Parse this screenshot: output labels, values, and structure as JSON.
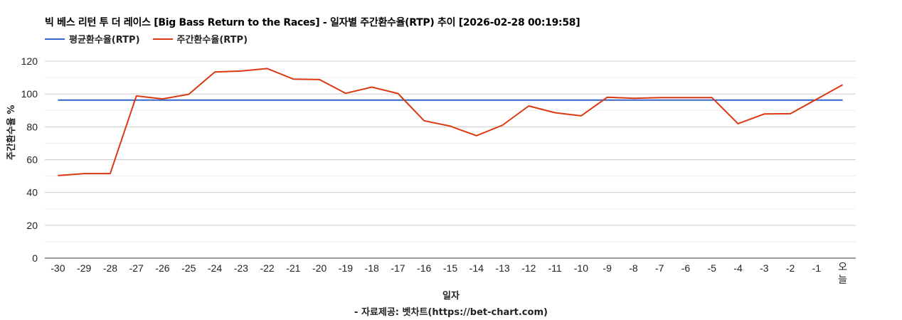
{
  "chart_title": "빅 베스 리턴 투 더 레이스 [Big Bass Return to the Races] - 일자별 주간환수율(RTP) 추이 [2026-02-28 00:19:58]",
  "legend": [
    {
      "label": "평균환수율(RTP)",
      "color": "#3366CC"
    },
    {
      "label": "주간환수율(RTP)",
      "color": "#DC3912"
    }
  ],
  "axis": {
    "ylabel": "주간환수율 %",
    "xlabel": "일자",
    "yticks": [
      "0",
      "20",
      "40",
      "60",
      "80",
      "100",
      "120"
    ]
  },
  "source_note": "- 자료제공: 벳차트(https://bet-chart.com)",
  "chart_data": {
    "type": "line",
    "title": "빅 베스 리턴 투 더 레이스 [Big Bass Return to the Races] - 일자별 주간환수율(RTP) 추이 [2026-02-28 00:19:58]",
    "xlabel": "일자",
    "ylabel": "주간환수율 %",
    "ylim": [
      0,
      120
    ],
    "yticks": [
      0,
      20,
      40,
      60,
      80,
      100,
      120
    ],
    "grid": true,
    "legend_position": "top",
    "categories": [
      "-30",
      "-29",
      "-28",
      "-27",
      "-26",
      "-25",
      "-24",
      "-23",
      "-22",
      "-21",
      "-20",
      "-19",
      "-18",
      "-17",
      "-16",
      "-15",
      "-14",
      "-13",
      "-12",
      "-11",
      "-10",
      "-9",
      "-8",
      "-7",
      "-6",
      "-5",
      "-4",
      "-3",
      "-2",
      "-1",
      "오늘"
    ],
    "series": [
      {
        "name": "평균환수율(RTP)",
        "color": "#3366CC",
        "values": [
          96.3,
          96.3,
          96.3,
          96.3,
          96.3,
          96.3,
          96.3,
          96.3,
          96.3,
          96.3,
          96.3,
          96.3,
          96.3,
          96.3,
          96.3,
          96.3,
          96.3,
          96.3,
          96.3,
          96.3,
          96.3,
          96.3,
          96.3,
          96.3,
          96.3,
          96.3,
          96.3,
          96.3,
          96.3,
          96.3,
          96.3
        ]
      },
      {
        "name": "주간환수율(RTP)",
        "color": "#DC3912",
        "values": [
          50.3,
          51.5,
          51.5,
          98.8,
          97.0,
          99.8,
          113.4,
          114.0,
          115.5,
          109.1,
          108.8,
          100.4,
          104.2,
          100.3,
          83.7,
          80.4,
          74.6,
          81.0,
          92.7,
          88.6,
          86.7,
          98.0,
          97.4,
          97.8,
          97.8,
          97.8,
          81.9,
          87.8,
          88.0,
          96.8,
          105.6
        ]
      }
    ]
  }
}
